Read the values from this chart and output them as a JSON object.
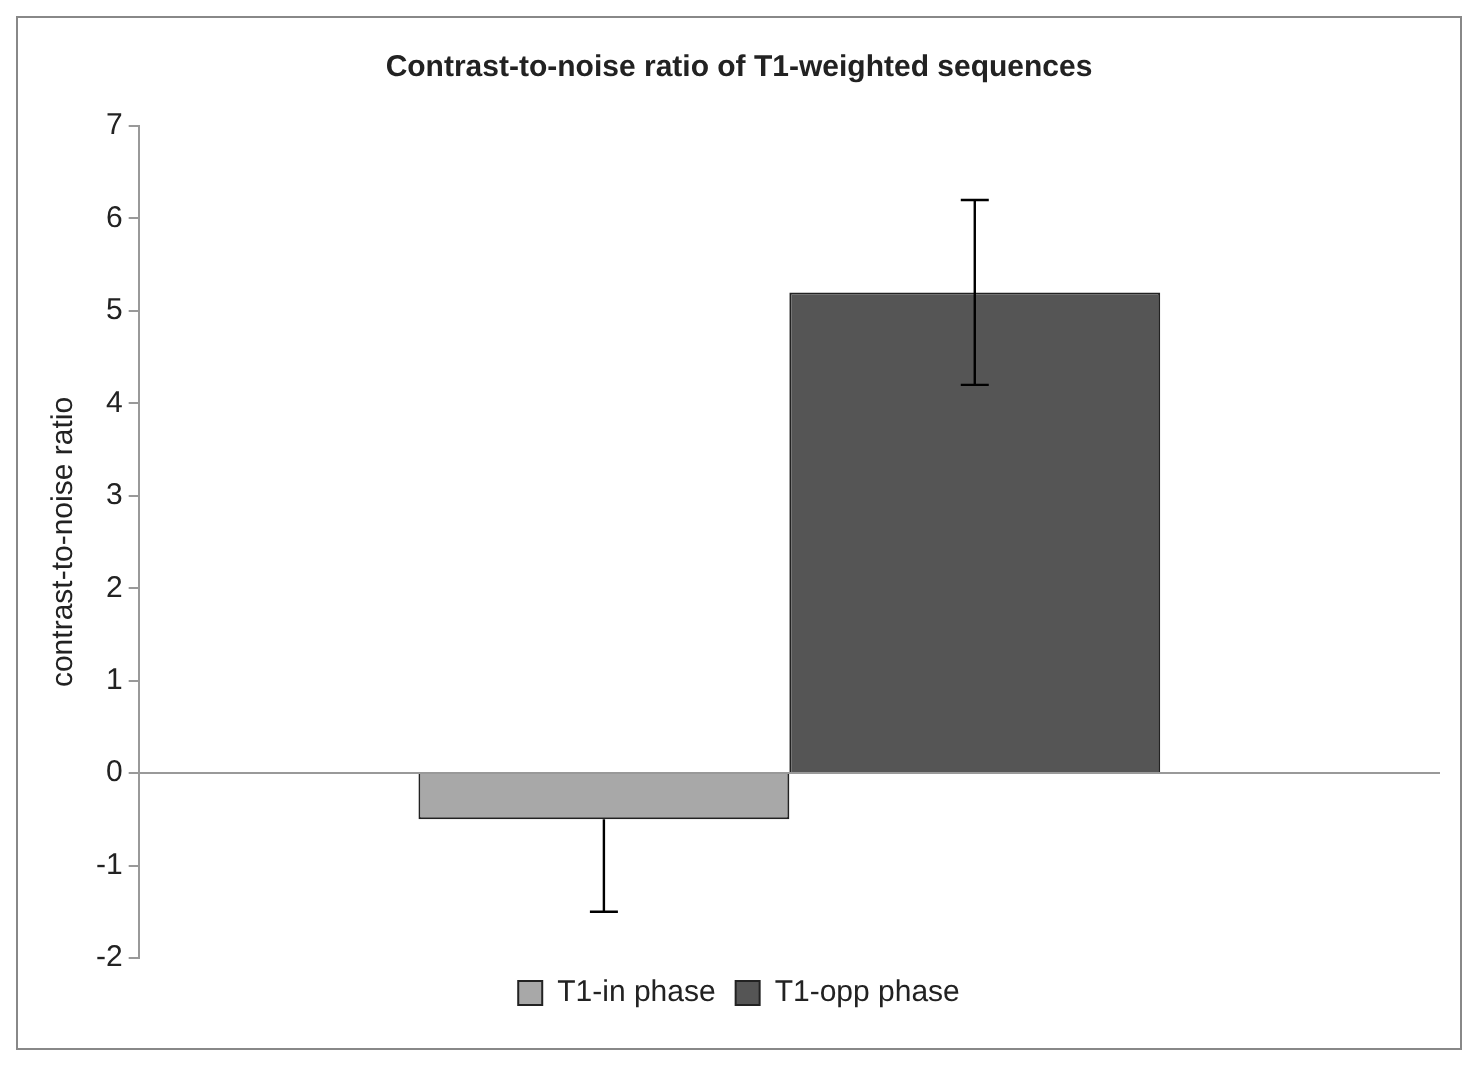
{
  "chart_data": {
    "type": "bar",
    "title": "Contrast-to-noise ratio of T1-weighted sequences",
    "ylabel": "contrast-to-noise ratio",
    "categories": [
      null
    ],
    "series": [
      {
        "name": "T1-in phase",
        "color": "#a8a8a8",
        "values": [
          -0.5
        ],
        "errors": [
          [
            -1.5,
            -0.5
          ]
        ]
      },
      {
        "name": "T1-opp phase",
        "color": "#555555",
        "values": [
          5.2
        ],
        "errors": [
          [
            4.2,
            6.2
          ]
        ]
      }
    ],
    "ylim": [
      -2,
      7
    ],
    "yticks": [
      -2,
      -1,
      0,
      1,
      2,
      3,
      4,
      5,
      6,
      7
    ],
    "legend": "bottom"
  }
}
